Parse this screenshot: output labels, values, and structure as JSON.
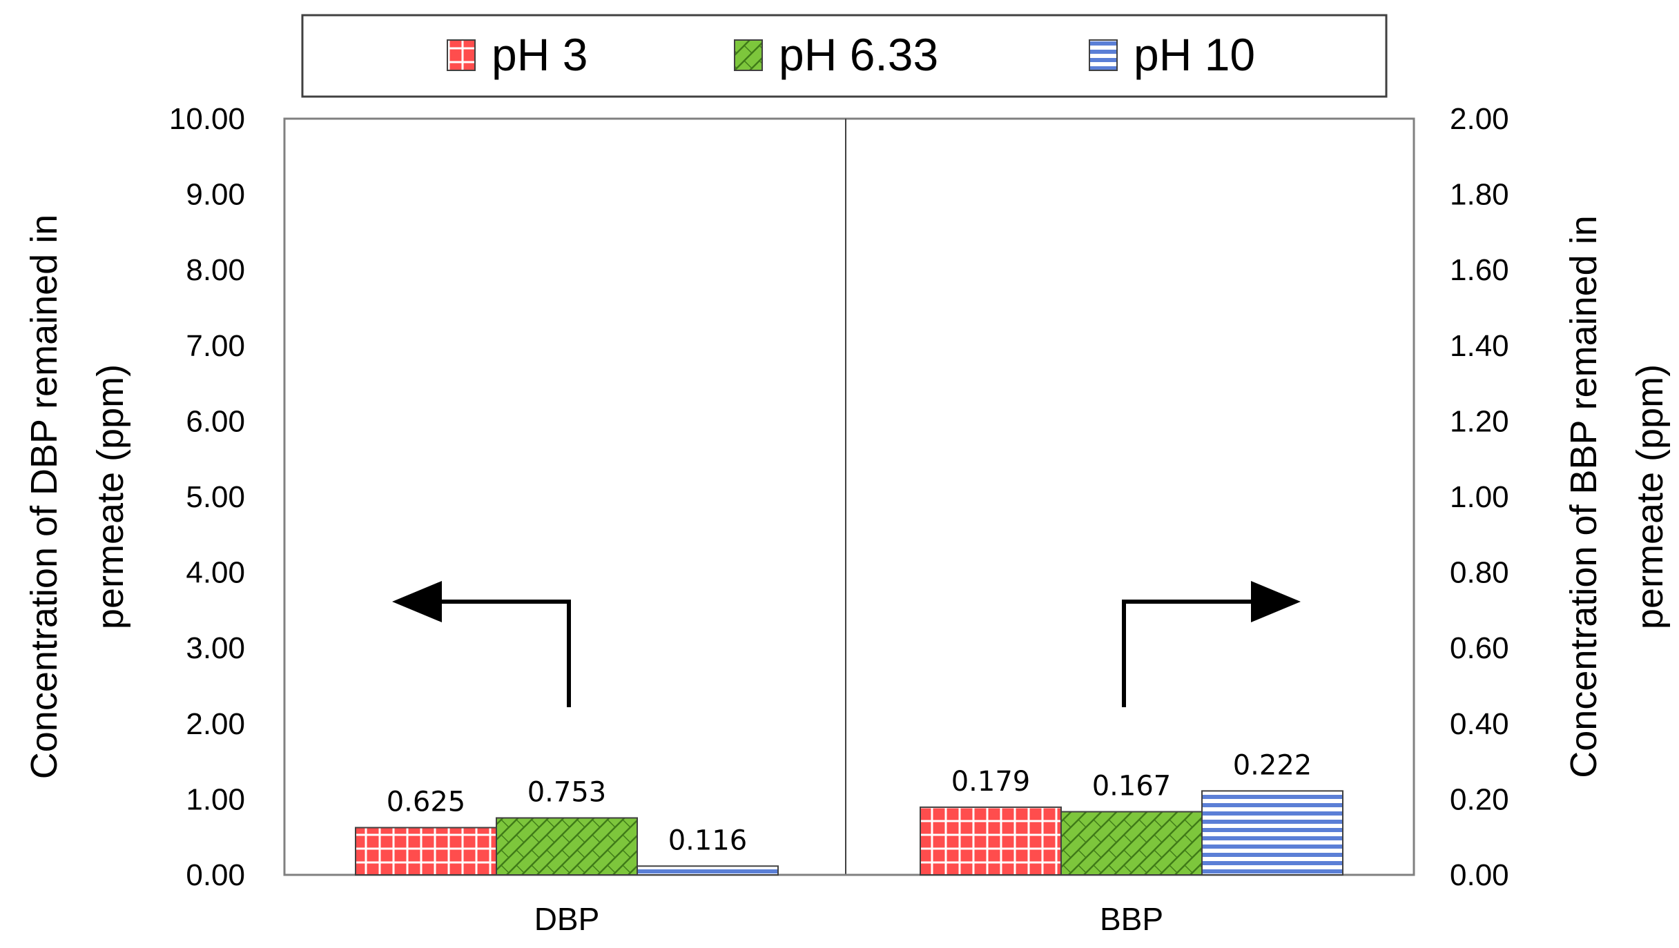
{
  "chart_data": {
    "type": "bar",
    "title": "",
    "categories": [
      "DBP",
      "BBP"
    ],
    "series": [
      {
        "name": "pH 3",
        "values": [
          0.625,
          0.179
        ],
        "labels": [
          "0.625",
          "0.179"
        ],
        "color": "#ff4d4d",
        "pattern": "grid"
      },
      {
        "name": "pH 6.33",
        "values": [
          0.753,
          0.167
        ],
        "labels": [
          "0.753",
          "0.167"
        ],
        "color": "#7dc63c",
        "pattern": "diagonal-cross"
      },
      {
        "name": "pH 10",
        "values": [
          0.116,
          0.222
        ],
        "labels": [
          "0.116",
          "0.222"
        ],
        "color": "#5b7fd6",
        "pattern": "horizontal"
      }
    ],
    "y_left": {
      "label_line1": "Concentration of DBP remained in",
      "label_line2": "permeate (ppm)",
      "range": [
        0,
        10
      ],
      "ticks": [
        "0.00",
        "1.00",
        "2.00",
        "3.00",
        "4.00",
        "5.00",
        "6.00",
        "7.00",
        "8.00",
        "9.00",
        "10.00"
      ],
      "applies_to": "DBP"
    },
    "y_right": {
      "label_line1": "Concentration of BBP remained in",
      "label_line2": "permeate (ppm)",
      "range": [
        0,
        2
      ],
      "ticks": [
        "0.00",
        "0.20",
        "0.40",
        "0.60",
        "0.80",
        "1.00",
        "1.20",
        "1.40",
        "1.60",
        "1.80",
        "2.00"
      ],
      "applies_to": "BBP"
    },
    "legend_position": "top",
    "grid": false,
    "annotations": [
      "arrow pointing to left axis (DBP)",
      "arrow pointing to right axis (BBP)"
    ]
  },
  "colors": {
    "axis": "#000000",
    "plot_border": "#808080",
    "bar_outline": "#404040"
  }
}
